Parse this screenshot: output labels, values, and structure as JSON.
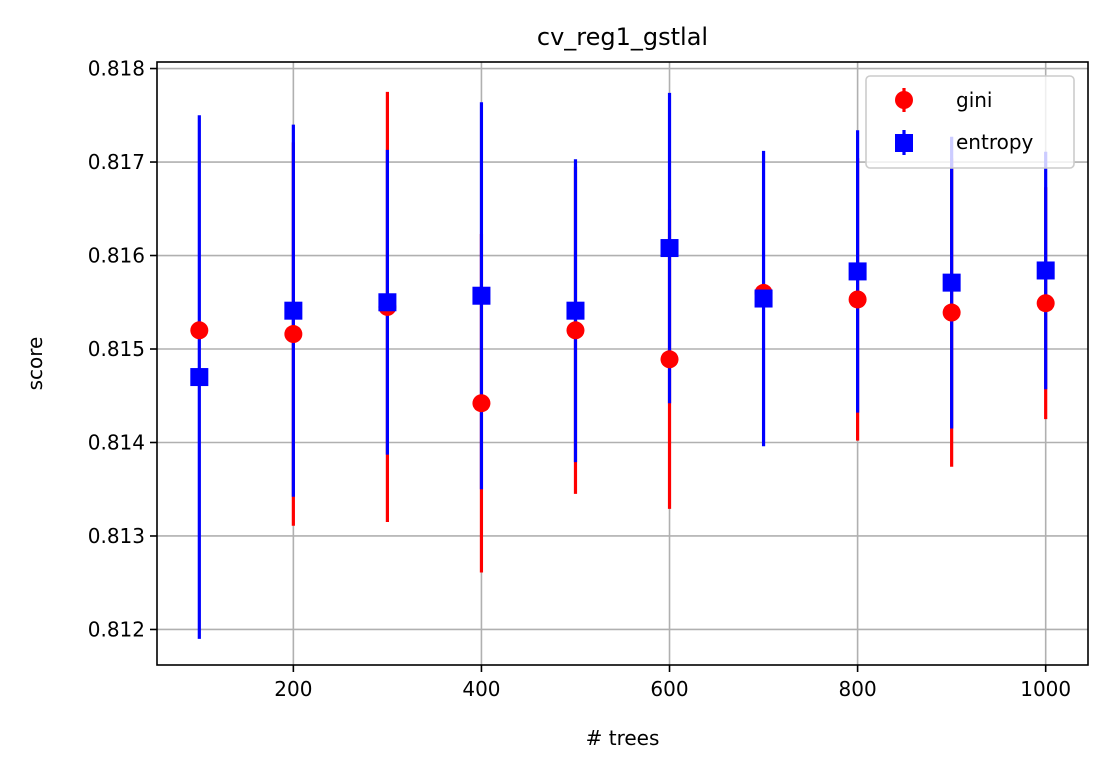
{
  "chart_data": {
    "type": "scatter",
    "title": "cv_reg1_gstlal",
    "xlabel": "# trees",
    "ylabel": "score",
    "xlim": [
      55,
      1045
    ],
    "ylim": [
      0.81162,
      0.81807
    ],
    "x_ticks": [
      200,
      400,
      600,
      800,
      1000
    ],
    "x_tick_labels": [
      "200",
      "400",
      "600",
      "800",
      "1000"
    ],
    "y_ticks": [
      0.812,
      0.813,
      0.814,
      0.815,
      0.816,
      0.817,
      0.818
    ],
    "y_tick_labels": [
      "0.812",
      "0.813",
      "0.814",
      "0.815",
      "0.816",
      "0.817",
      "0.818"
    ],
    "grid": true,
    "legend_position": "top-right",
    "x": [
      100,
      200,
      300,
      400,
      500,
      600,
      700,
      800,
      900,
      1000
    ],
    "series": [
      {
        "name": "gini",
        "marker": "circle",
        "color": "#ff0000",
        "values": [
          0.8152,
          0.81516,
          0.81545,
          0.81442,
          0.8152,
          0.81489,
          0.8156,
          0.81553,
          0.81539,
          0.81549
        ],
        "errors": [
          0.0,
          0.00205,
          0.0023,
          0.00181,
          0.00175,
          0.0016,
          0.0,
          0.00151,
          0.00165,
          0.00124
        ]
      },
      {
        "name": "entropy",
        "marker": "square",
        "color": "#0000ff",
        "values": [
          0.8147,
          0.81541,
          0.8155,
          0.81557,
          0.81541,
          0.81608,
          0.81554,
          0.81583,
          0.81571,
          0.81584
        ],
        "errors": [
          0.0028,
          0.00199,
          0.00163,
          0.00207,
          0.00162,
          0.00166,
          0.00158,
          0.00151,
          0.00156,
          0.00127
        ]
      }
    ]
  }
}
